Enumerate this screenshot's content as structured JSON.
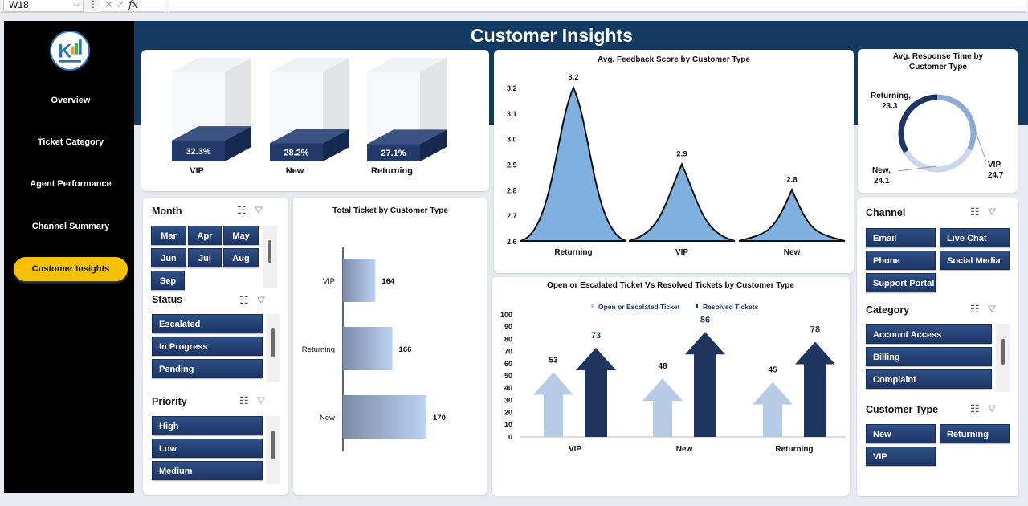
{
  "formula_bar": {
    "cell_ref": "W18",
    "fx": "fx"
  },
  "title": "Customer Insights",
  "nav": {
    "items": [
      {
        "label": "Overview",
        "active": false
      },
      {
        "label": "Ticket Category",
        "active": false
      },
      {
        "label": "Agent Performance",
        "active": false
      },
      {
        "label": "Channel Summary",
        "active": false
      },
      {
        "label": "Customer Insights",
        "active": true
      }
    ]
  },
  "colors": {
    "header": "#123a63",
    "nav_active": "#f6c200",
    "slicer_button": "#1f3a6e",
    "violin": "#7fb0e0",
    "open_arrow": "#b8cbe6",
    "resolved_arrow": "#1f3560"
  },
  "slicers": {
    "month": {
      "title": "Month",
      "items": [
        "Mar",
        "Apr",
        "May",
        "Jun",
        "Jul",
        "Aug",
        "Sep"
      ]
    },
    "status": {
      "title": "Status",
      "items": [
        "Escalated",
        "In Progress",
        "Pending"
      ]
    },
    "priority": {
      "title": "Priority",
      "items": [
        "High",
        "Low",
        "Medium"
      ]
    },
    "channel": {
      "title": "Channel",
      "items": [
        "Email",
        "Live Chat",
        "Phone",
        "Social Media",
        "Support Portal"
      ]
    },
    "category": {
      "title": "Category",
      "items": [
        "Account Access",
        "Billing",
        "Complaint"
      ]
    },
    "customer_type": {
      "title": "Customer Type",
      "items": [
        "New",
        "Returning",
        "VIP"
      ]
    }
  },
  "chart_data": [
    {
      "type": "bar",
      "title": "",
      "categories": [
        "VIP",
        "New",
        "Returning"
      ],
      "values": [
        32.3,
        28.2,
        27.1
      ],
      "labels": [
        "32.3%",
        "28.2%",
        "27.1%"
      ],
      "ylim": [
        0,
        100
      ]
    },
    {
      "type": "area",
      "title": "Avg. Feedback Score by Customer Type",
      "categories": [
        "Returning",
        "VIP",
        "New"
      ],
      "values": [
        3.2,
        2.9,
        2.8
      ],
      "ylim": [
        2.6,
        3.2
      ],
      "yticks": [
        "3.2",
        "3.1",
        "3.0",
        "2.9",
        "2.8",
        "2.7",
        "2.6"
      ]
    },
    {
      "type": "pie",
      "title": "Avg. Response Time by Customer Type",
      "categories": [
        "Returning",
        "VIP",
        "New"
      ],
      "values": [
        23.3,
        24.7,
        24.1
      ],
      "labels": [
        "Returning,",
        "23.3",
        "VIP,",
        "24.7",
        "New,",
        "24.1"
      ]
    },
    {
      "type": "bar",
      "title": "Total Ticket by Customer Type",
      "categories": [
        "VIP",
        "Returning",
        "New"
      ],
      "values": [
        164,
        166,
        170
      ]
    },
    {
      "type": "bar",
      "title": "Open or Escalated Ticket Vs Resolved Tickets by Customer Type",
      "categories": [
        "VIP",
        "New",
        "Returning"
      ],
      "series": [
        {
          "name": "Open or Escalated Ticket",
          "values": [
            53,
            48,
            45
          ]
        },
        {
          "name": "Resolved Tickets",
          "values": [
            73,
            86,
            78
          ]
        }
      ],
      "ylim": [
        0,
        100
      ],
      "yticks": [
        "100",
        "90",
        "80",
        "70",
        "60",
        "50",
        "40",
        "30",
        "20",
        "10",
        "0"
      ]
    }
  ]
}
